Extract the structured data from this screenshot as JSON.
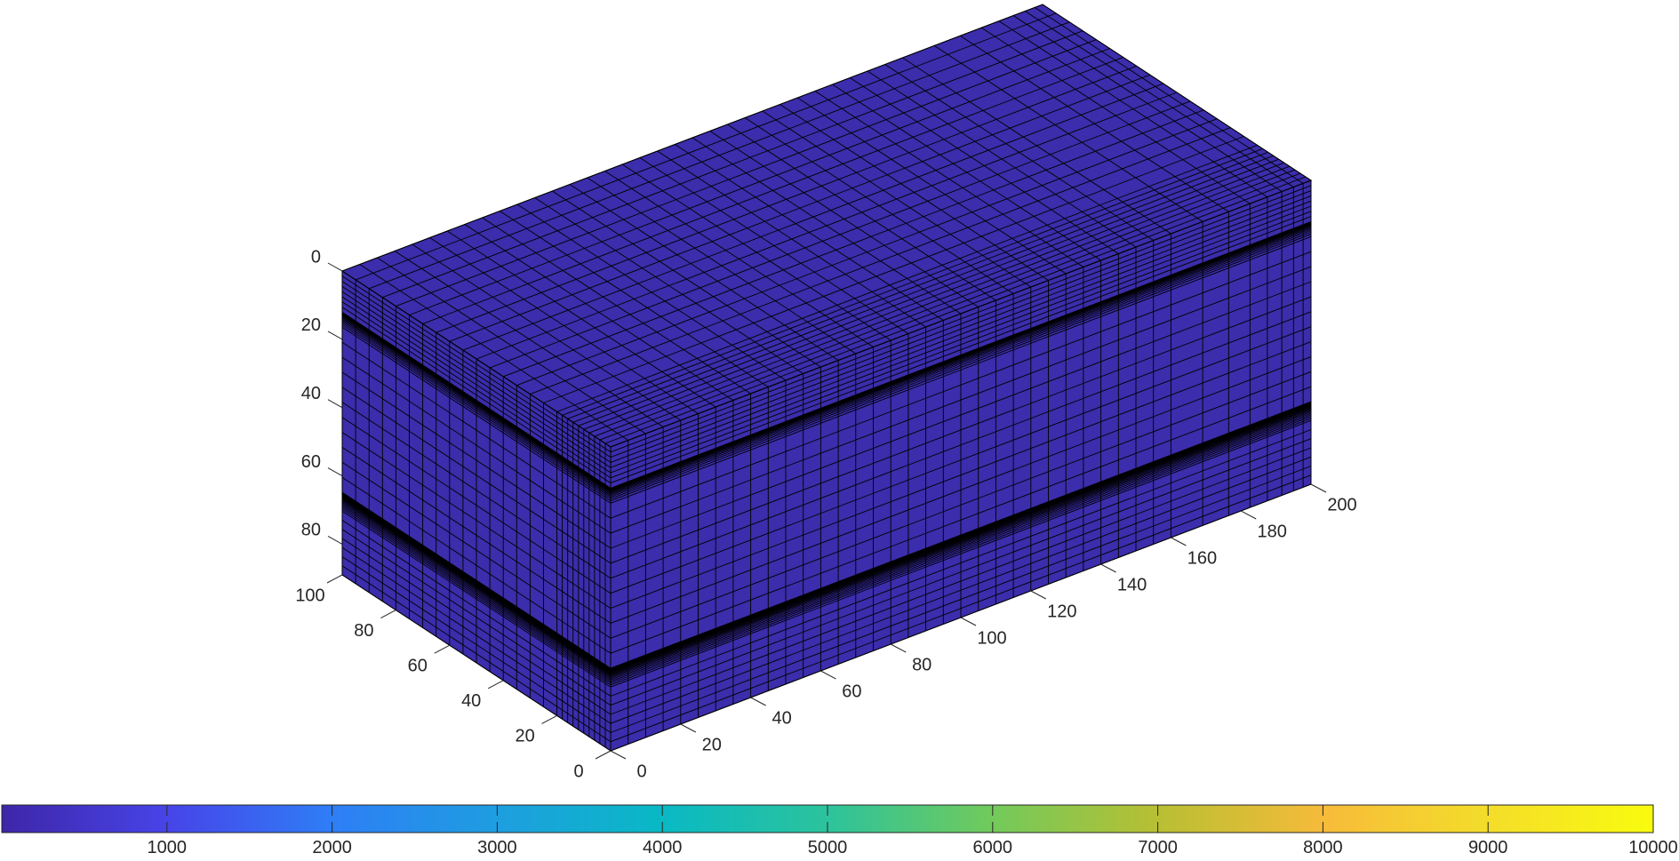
{
  "chart_data": {
    "type": "mesh3d",
    "title": "",
    "axes": {
      "x": {
        "ticks": [
          0,
          20,
          40,
          60,
          80,
          100,
          120,
          140,
          160,
          180,
          200
        ],
        "range": [
          0,
          200
        ]
      },
      "y": {
        "ticks": [
          0,
          20,
          40,
          60,
          80,
          100
        ],
        "range": [
          0,
          100
        ]
      },
      "z": {
        "ticks": [
          0,
          20,
          40,
          60,
          80
        ],
        "range": [
          0,
          89
        ],
        "direction": "reversed"
      }
    },
    "box_value": 100,
    "colors": {
      "face": "#3b2dab",
      "edge": "#000000"
    },
    "colorbar": {
      "ticks": [
        1000,
        2000,
        3000,
        4000,
        5000,
        6000,
        7000,
        8000,
        9000,
        10000
      ],
      "range": [
        0,
        10000
      ],
      "colormap": "parula",
      "stops": [
        "#3e26a8",
        "#4744e8",
        "#2e7ef6",
        "#1e9ee0",
        "#09b9c4",
        "#2cc39c",
        "#72ca5b",
        "#b8bf33",
        "#f6bb3a",
        "#f4dd2a",
        "#f9fb0e"
      ],
      "placement": "bottom"
    }
  }
}
